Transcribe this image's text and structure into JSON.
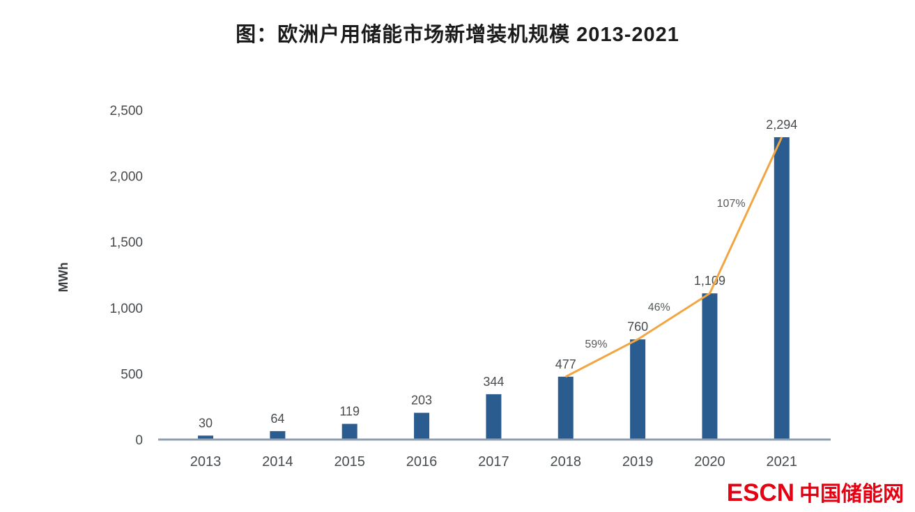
{
  "title": "图：欧洲户用储能市场新增装机规模 2013-2021",
  "watermark": {
    "latin": "ESCN",
    "chinese": "中国储能网",
    "color": "#e60012"
  },
  "chart_data": {
    "type": "bar",
    "title": "图：欧洲户用储能市场新增装机规模 2013-2021",
    "xlabel": "",
    "ylabel": "MWh",
    "categories": [
      "2013",
      "2014",
      "2015",
      "2016",
      "2017",
      "2018",
      "2019",
      "2020",
      "2021"
    ],
    "series": [
      {
        "type": "bar",
        "color": "#2b5c8f",
        "values": [
          30,
          64,
          119,
          203,
          344,
          477,
          760,
          1109,
          2294
        ],
        "value_labels": [
          "30",
          "64",
          "119",
          "203",
          "344",
          "477",
          "760",
          "1,109",
          "2,294"
        ]
      },
      {
        "type": "line",
        "color": "#f2a540",
        "x": [
          "2018",
          "2019",
          "2020",
          "2021"
        ],
        "values": [
          477,
          760,
          1109,
          2294
        ],
        "growth_labels": [
          "59%",
          "46%",
          "107%"
        ]
      }
    ],
    "ylim": [
      0,
      2500
    ],
    "yticks": {
      "values": [
        0,
        500,
        1000,
        1500,
        2000,
        2500
      ],
      "labels": [
        "0",
        "500",
        "1,000",
        "1,500",
        "2,000",
        "2,500"
      ]
    },
    "grid": false,
    "legend": "none",
    "text_color": "#474b4e",
    "axis_color": "#8e9db0"
  }
}
